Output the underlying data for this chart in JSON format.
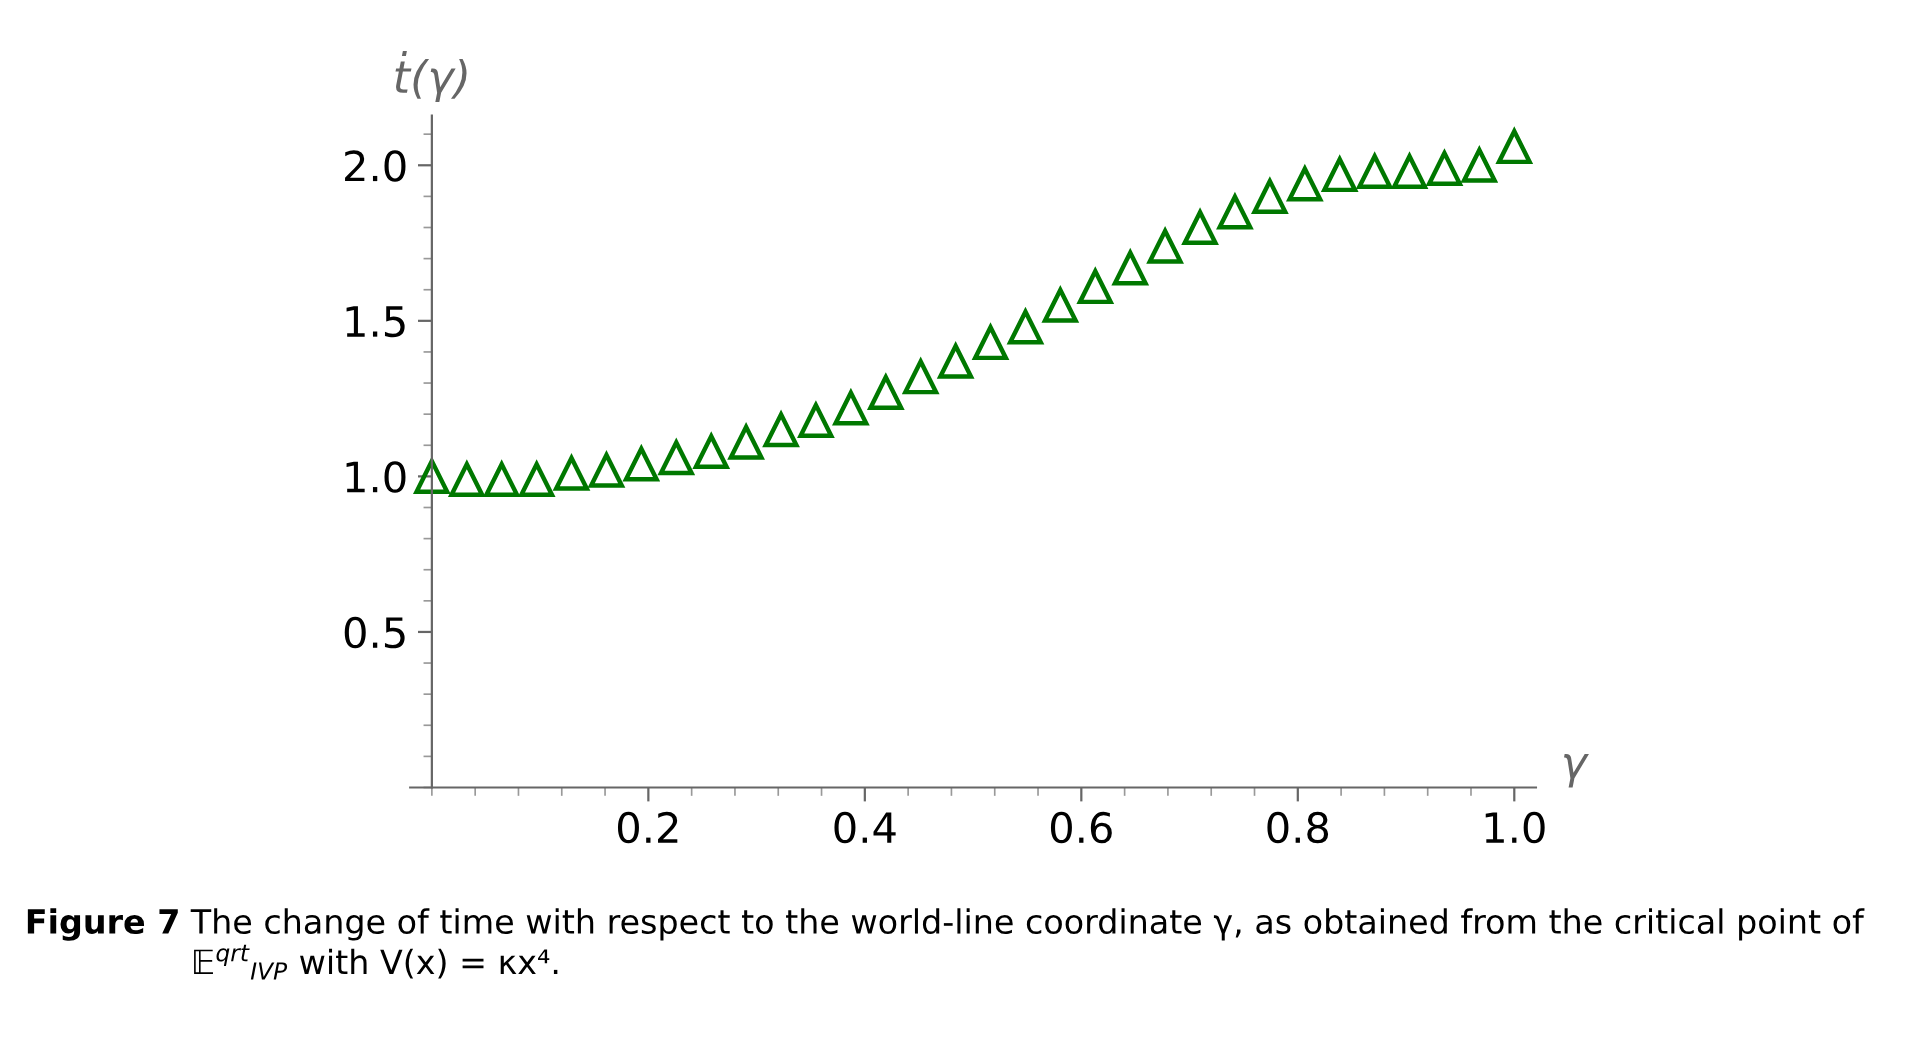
{
  "chart_data": {
    "type": "scatter",
    "xlabel": "γ",
    "ylabel": "ṫ(γ)",
    "x": [
      0.0,
      0.0323,
      0.0645,
      0.0968,
      0.129,
      0.1613,
      0.1935,
      0.2258,
      0.2581,
      0.2903,
      0.3226,
      0.3548,
      0.3871,
      0.4194,
      0.4516,
      0.4839,
      0.5161,
      0.5484,
      0.5806,
      0.6129,
      0.6452,
      0.6774,
      0.7097,
      0.7419,
      0.7742,
      0.8065,
      0.8387,
      0.871,
      0.9032,
      0.9355,
      0.9677,
      1.0
    ],
    "series": [
      {
        "color": "#007800",
        "values": [
          1.0,
          0.99,
          0.99,
          0.99,
          1.01,
          1.02,
          1.04,
          1.06,
          1.08,
          1.11,
          1.15,
          1.18,
          1.22,
          1.27,
          1.32,
          1.37,
          1.43,
          1.48,
          1.55,
          1.61,
          1.67,
          1.74,
          1.8,
          1.85,
          1.9,
          1.94,
          1.97,
          1.98,
          1.98,
          1.99,
          2.0,
          2.06
        ]
      }
    ],
    "marker": "triangle",
    "xlim": [
      -0.02,
      1.02
    ],
    "ylim": [
      0.0,
      2.16
    ],
    "xticks": [
      0.2,
      0.4,
      0.6,
      0.8,
      {
        "value": 1.0,
        "label": "1.0"
      }
    ],
    "yticks": [
      0.5,
      {
        "value": 1.0,
        "label": "1.0"
      },
      1.5,
      {
        "value": 2.0,
        "label": "2.0"
      }
    ],
    "grid": false,
    "legend": false,
    "annotations": [
      "Figure 7",
      "The change of time with respect to the world-line coordinate γ, as obtained from the critical point of 𝔼$^{qrt}$$_{IVP}$ with V(x) = κx⁴."
    ]
  }
}
